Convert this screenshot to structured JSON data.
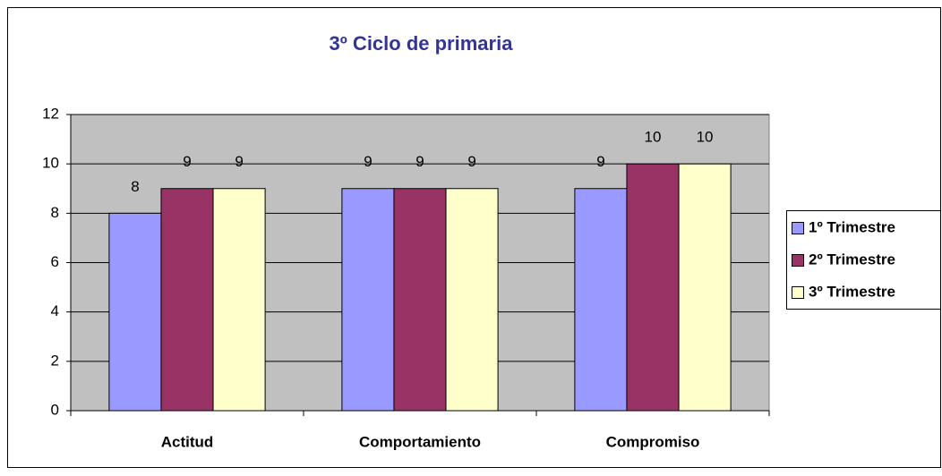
{
  "chart_data": {
    "type": "bar",
    "title": "3º Ciclo de primaria",
    "categories": [
      "Actitud",
      "Comportamiento",
      "Compromiso"
    ],
    "series": [
      {
        "name": "1º Trimestre",
        "color": "#9999ff",
        "values": [
          8,
          9,
          9
        ]
      },
      {
        "name": "2º Trimestre",
        "color": "#993366",
        "values": [
          9,
          9,
          10
        ]
      },
      {
        "name": "3º Trimestre",
        "color": "#ffffcc",
        "values": [
          9,
          9,
          10
        ]
      }
    ],
    "ylim": [
      0,
      12
    ],
    "yticks": [
      0,
      2,
      4,
      6,
      8,
      10,
      12
    ],
    "grid": true,
    "legend": "right",
    "plot_background": "#c0c0c0",
    "title_color": "#333399"
  }
}
